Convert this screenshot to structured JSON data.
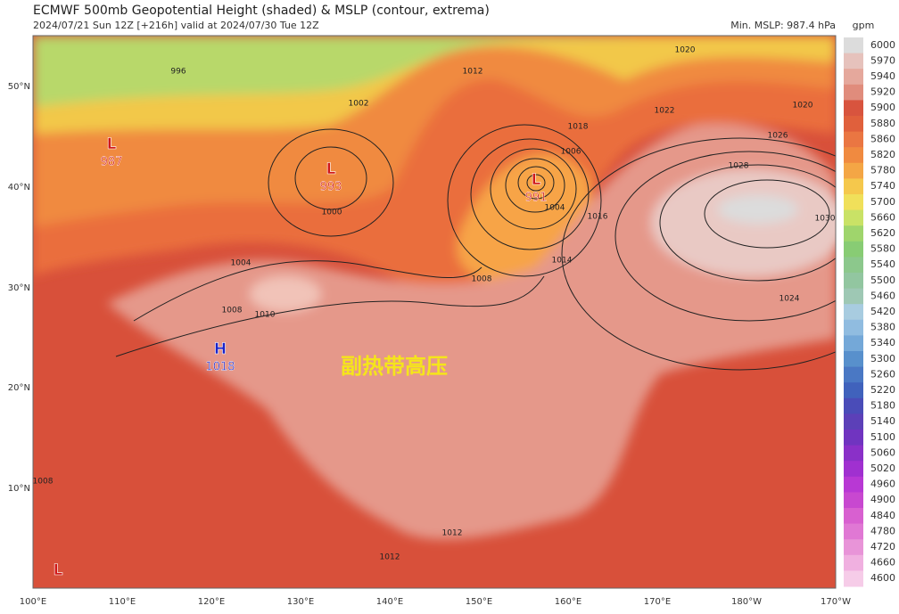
{
  "header": {
    "title": "ECMWF 500mb Geopotential Height (shaded) & MSLP (contour, extrema)",
    "subtitle": "2024/07/21 Sun 12Z [+216h] valid at 2024/07/30 Tue 12Z",
    "min_mslp": "Min. MSLP: 987.4 hPa"
  },
  "colorbar": {
    "unit": "gpm",
    "levels": [
      "6000",
      "5970",
      "5940",
      "5920",
      "5900",
      "5880",
      "5860",
      "5820",
      "5780",
      "5740",
      "5700",
      "5660",
      "5620",
      "5580",
      "5540",
      "5500",
      "5460",
      "5420",
      "5380",
      "5340",
      "5300",
      "5260",
      "5220",
      "5180",
      "5140",
      "5100",
      "5060",
      "5020",
      "4960",
      "4900",
      "4840",
      "4780",
      "4720",
      "4660",
      "4600"
    ]
  },
  "lat_labels": [
    "50°N",
    "40°N",
    "30°N",
    "20°N",
    "10°N"
  ],
  "lon_labels": [
    "100°E",
    "110°E",
    "120°E",
    "130°E",
    "140°E",
    "150°E",
    "160°E",
    "170°E",
    "180°W",
    "170°W"
  ],
  "pressure_centers": [
    {
      "type": "L",
      "value": "987"
    },
    {
      "type": "L",
      "value": "993"
    },
    {
      "type": "L",
      "value": "991"
    },
    {
      "type": "H",
      "value": "1018"
    },
    {
      "type": "L"
    }
  ],
  "contour_labels": [
    "1012",
    "1018",
    "1020",
    "1022",
    "1020",
    "1026",
    "1028",
    "1030",
    "1024",
    "1016",
    "1014",
    "1008",
    "1004",
    "1006",
    "1002",
    "1000",
    "996",
    "1004",
    "1008",
    "1010",
    "1008",
    "1012",
    "1012"
  ],
  "annotation": "副热带高压"
}
